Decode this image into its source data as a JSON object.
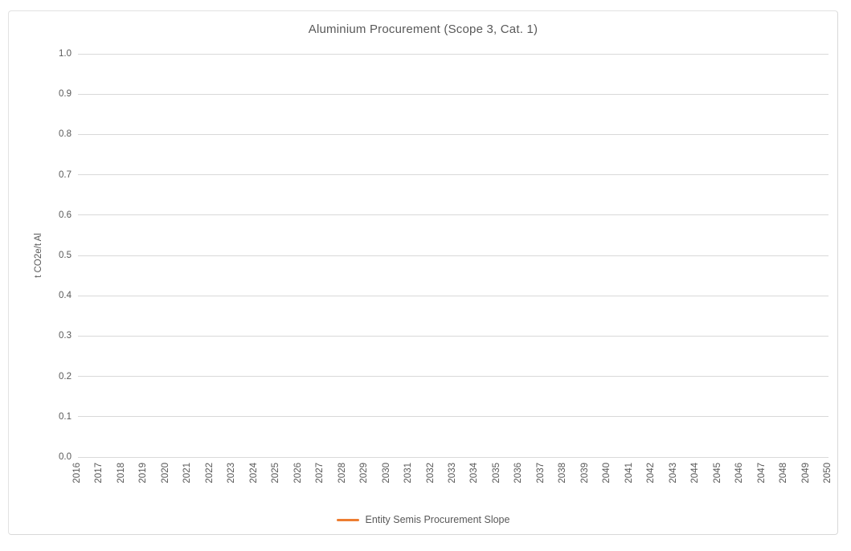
{
  "chart_data": {
    "type": "line",
    "title": "Aluminium Procurement (Scope 3, Cat. 1)",
    "xlabel": "",
    "ylabel": "t CO2e/t Al",
    "categories": [
      "2016",
      "2017",
      "2018",
      "2019",
      "2020",
      "2021",
      "2022",
      "2023",
      "2024",
      "2025",
      "2026",
      "2027",
      "2028",
      "2029",
      "2030",
      "2031",
      "2032",
      "2033",
      "2034",
      "2035",
      "2036",
      "2037",
      "2038",
      "2039",
      "2040",
      "2041",
      "2042",
      "2043",
      "2044",
      "2045",
      "2046",
      "2047",
      "2048",
      "2049",
      "2050"
    ],
    "series": [
      {
        "name": "Entity Semis Procurement Slope",
        "color": "#ED7D31",
        "values": []
      }
    ],
    "ylim": [
      0.0,
      1.0
    ],
    "ytick_step": 0.1,
    "ytick_labels": [
      "0.0",
      "0.1",
      "0.2",
      "0.3",
      "0.4",
      "0.5",
      "0.6",
      "0.7",
      "0.8",
      "0.9",
      "1.0"
    ],
    "grid": true,
    "legend_position": "bottom",
    "colors": {
      "text": "#595959",
      "gridline": "#D9D9D9",
      "frame_border": "#D9D9D9",
      "background": "#ffffff"
    }
  }
}
